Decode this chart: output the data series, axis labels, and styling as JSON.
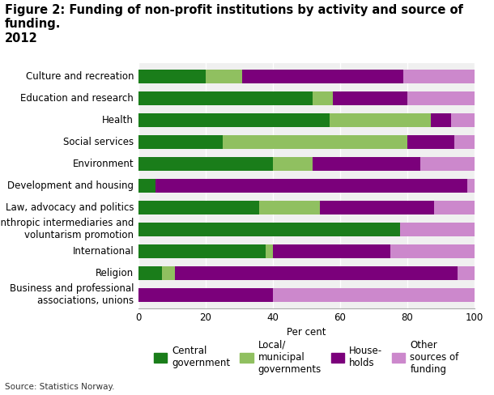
{
  "title": "Figure 2: Funding of non-profit institutions by activity and source of funding.\n2012",
  "categories": [
    "Business and professional\nassociations, unions",
    "Religion",
    "International",
    "Philanthropic intermediaries and\nvoluntarism promotion",
    "Law, advocacy and politics",
    "Development and housing",
    "Environment",
    "Social services",
    "Health",
    "Education and research",
    "Culture and recreation"
  ],
  "central_government": [
    0,
    7,
    38,
    78,
    36,
    5,
    40,
    25,
    57,
    52,
    20
  ],
  "local_municipal": [
    0,
    4,
    2,
    0,
    18,
    0,
    12,
    55,
    30,
    6,
    11
  ],
  "households": [
    40,
    84,
    35,
    0,
    34,
    93,
    32,
    14,
    6,
    22,
    48
  ],
  "other_sources": [
    60,
    5,
    25,
    22,
    12,
    2,
    16,
    6,
    7,
    20,
    21
  ],
  "colors": {
    "central_government": "#1a7d1a",
    "local_municipal": "#90C060",
    "households": "#7B007B",
    "other_sources": "#CC88CC"
  },
  "legend_labels": {
    "central_government": "Central\ngovernment",
    "local_municipal": "Local/\nmunicipal\ngovernments",
    "households": "House-\nholds",
    "other_sources": "Other\nsources of\nfunding"
  },
  "xlabel": "Per cent",
  "xlim": [
    0,
    100
  ],
  "xticks": [
    0,
    20,
    40,
    60,
    80,
    100
  ],
  "source": "Source: Statistics Norway.",
  "background_color": "#ffffff",
  "bar_height": 0.62,
  "title_fontsize": 10.5,
  "tick_fontsize": 8.5,
  "label_fontsize": 8.5
}
